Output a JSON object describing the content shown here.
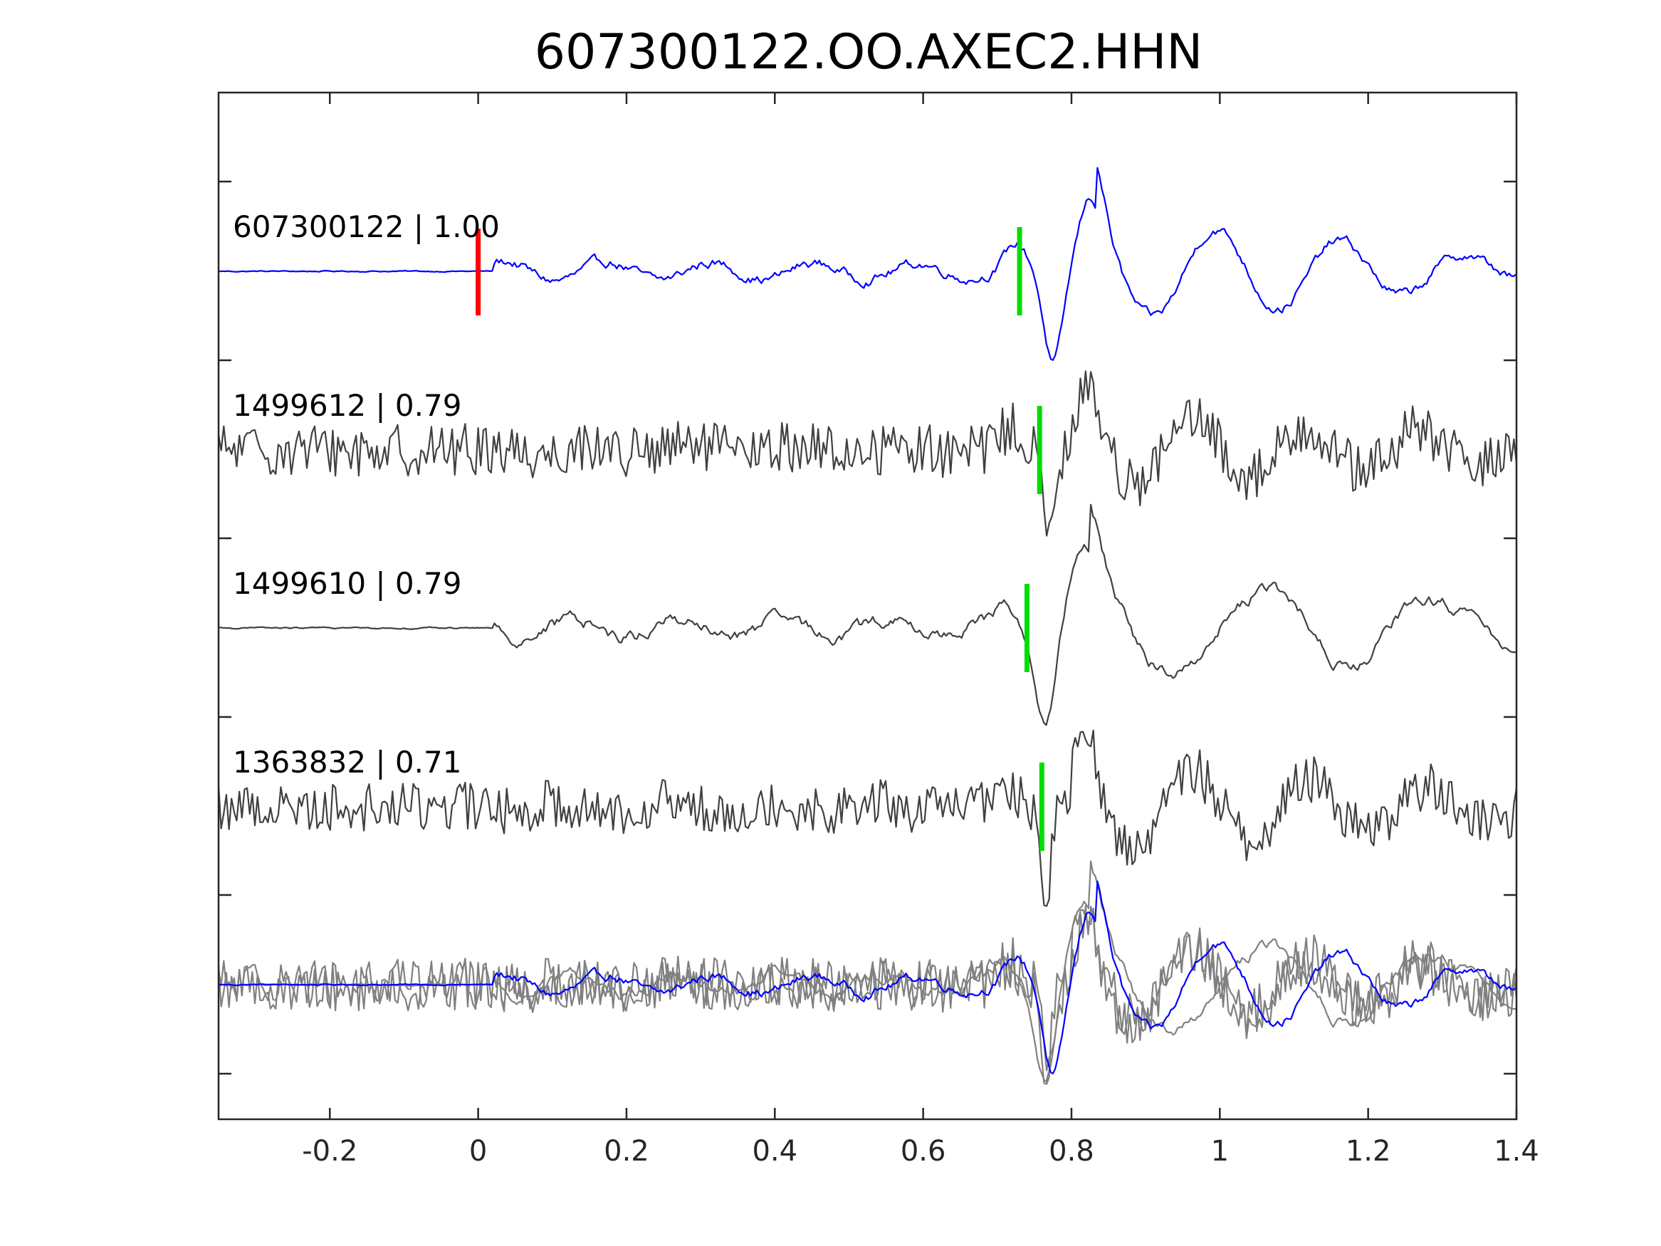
{
  "chart_data": {
    "type": "line",
    "title": "607300122.OO.AXEC2.HHN",
    "xlabel": "",
    "ylabel": "",
    "xlim": [
      -0.35,
      1.4
    ],
    "xticks": [
      "-0.2",
      "0",
      "0.2",
      "0.4",
      "0.6",
      "0.8",
      "1",
      "1.2",
      "1.4"
    ],
    "xtick_values": [
      -0.2,
      0,
      0.2,
      0.4,
      0.6,
      0.8,
      1.0,
      1.2,
      1.4
    ],
    "grid": false,
    "colors": {
      "template": "#0000ff",
      "detection": "#404040",
      "overlay_detection": "#808080",
      "p_pick": "#ff0000",
      "s_pick": "#00dd00"
    },
    "series": [
      {
        "label": "607300122 | 1.00",
        "role": "template",
        "style": "smooth",
        "red_pick_time": 0.0,
        "green_pick_time": 0.73,
        "noise_level": 0.08,
        "pulse": {
          "t": 0.775,
          "amp": -1.1,
          "width": 0.018
        },
        "coda": {
          "amp": 0.75,
          "freq": 11.5,
          "decay": 2.2
        }
      },
      {
        "label": "1499612 | 0.79",
        "role": "detection",
        "style": "noisy",
        "green_pick_time": 0.757,
        "noise_level": 0.32,
        "pulse": {
          "t": 0.77,
          "amp": -1.0,
          "width": 0.012
        },
        "coda": {
          "amp": 0.45,
          "freq": 13,
          "decay": 1.6
        }
      },
      {
        "label": "1499610 | 0.79",
        "role": "detection",
        "style": "smooth",
        "green_pick_time": 0.74,
        "noise_level": 0.1,
        "pulse": {
          "t": 0.765,
          "amp": -1.1,
          "width": 0.02
        },
        "coda": {
          "amp": 0.7,
          "freq": 8.5,
          "decay": 1.2
        }
      },
      {
        "label": "1363832 | 0.71",
        "role": "detection",
        "style": "noisy",
        "green_pick_time": 0.76,
        "noise_level": 0.3,
        "pulse": {
          "t": 0.765,
          "amp": -1.1,
          "width": 0.011
        },
        "coda": {
          "amp": 0.55,
          "freq": 12.5,
          "decay": 1.4
        }
      }
    ]
  }
}
